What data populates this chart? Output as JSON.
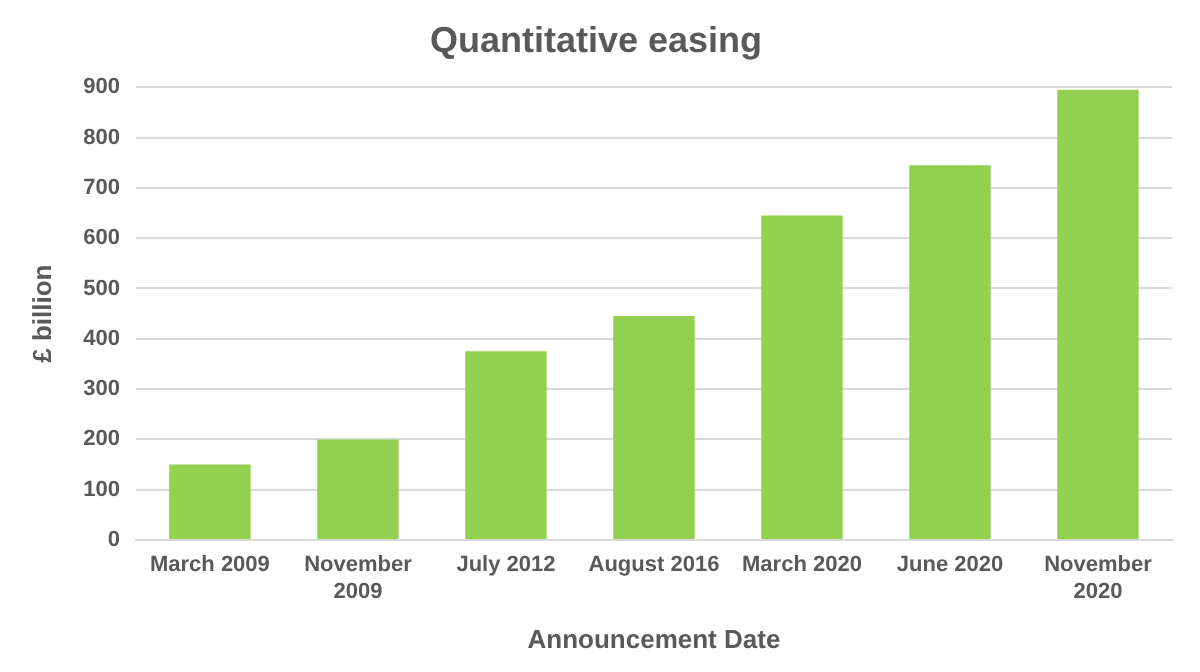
{
  "chart_data": {
    "type": "bar",
    "title": "Quantitative easing",
    "xlabel": "Announcement Date",
    "ylabel": "£ billion",
    "categories": [
      "March 2009",
      "November 2009",
      "July 2012",
      "August 2016",
      "March 2020",
      "June 2020",
      "November 2020"
    ],
    "values": [
      150,
      200,
      375,
      445,
      645,
      745,
      895
    ],
    "color": "#92d050",
    "ylim": [
      0,
      900
    ],
    "yticks": [
      0,
      100,
      200,
      300,
      400,
      500,
      600,
      700,
      800,
      900
    ],
    "grid": "y",
    "legend": false
  }
}
